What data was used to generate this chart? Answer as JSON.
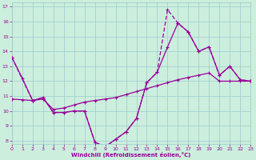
{
  "xlabel": "Windchill (Refroidissement éolien,°C)",
  "bg_color": "#cceedd",
  "line_color": "#990099",
  "grid_color": "#99cccc",
  "xlim": [
    0,
    23
  ],
  "ylim": [
    7.8,
    17.3
  ],
  "yticks": [
    8,
    9,
    10,
    11,
    12,
    13,
    14,
    15,
    16,
    17
  ],
  "xticks": [
    0,
    1,
    2,
    3,
    4,
    5,
    6,
    7,
    8,
    9,
    10,
    11,
    12,
    13,
    14,
    15,
    16,
    17,
    18,
    19,
    20,
    21,
    22,
    23
  ],
  "series1_x": [
    0,
    1,
    2,
    3,
    4,
    5,
    6,
    7,
    8,
    9,
    10,
    11,
    12,
    13,
    14,
    15,
    16,
    17,
    18,
    19,
    20,
    21,
    22,
    23
  ],
  "series1_y": [
    13.6,
    12.2,
    10.7,
    10.9,
    9.9,
    9.9,
    10.0,
    10.0,
    7.9,
    7.6,
    8.1,
    8.6,
    9.5,
    11.9,
    12.6,
    14.3,
    15.9,
    15.3,
    14.0,
    14.3,
    12.4,
    13.0,
    12.1,
    12.0
  ],
  "series2_x": [
    0,
    1,
    2,
    3,
    4,
    5,
    6,
    7,
    8,
    9,
    10,
    11,
    12,
    13,
    14,
    15,
    16,
    17,
    18,
    19,
    20,
    21,
    22,
    23
  ],
  "series2_y": [
    10.8,
    10.75,
    10.7,
    10.8,
    10.1,
    10.2,
    10.4,
    10.6,
    10.7,
    10.8,
    10.9,
    11.1,
    11.3,
    11.5,
    11.7,
    11.9,
    12.1,
    12.25,
    12.4,
    12.55,
    12.0,
    12.0,
    12.0,
    12.0
  ],
  "series3_x": [
    0,
    2,
    3,
    4,
    5,
    6,
    7,
    8,
    9,
    10,
    11,
    12,
    13,
    14,
    15,
    16,
    17,
    18,
    19,
    20,
    21,
    22,
    23
  ],
  "series3_y": [
    13.6,
    10.7,
    10.9,
    9.9,
    9.9,
    10.0,
    10.0,
    7.9,
    7.6,
    8.1,
    8.6,
    9.5,
    11.9,
    12.6,
    16.8,
    15.9,
    15.3,
    14.0,
    14.3,
    12.4,
    13.0,
    12.1,
    12.0
  ]
}
